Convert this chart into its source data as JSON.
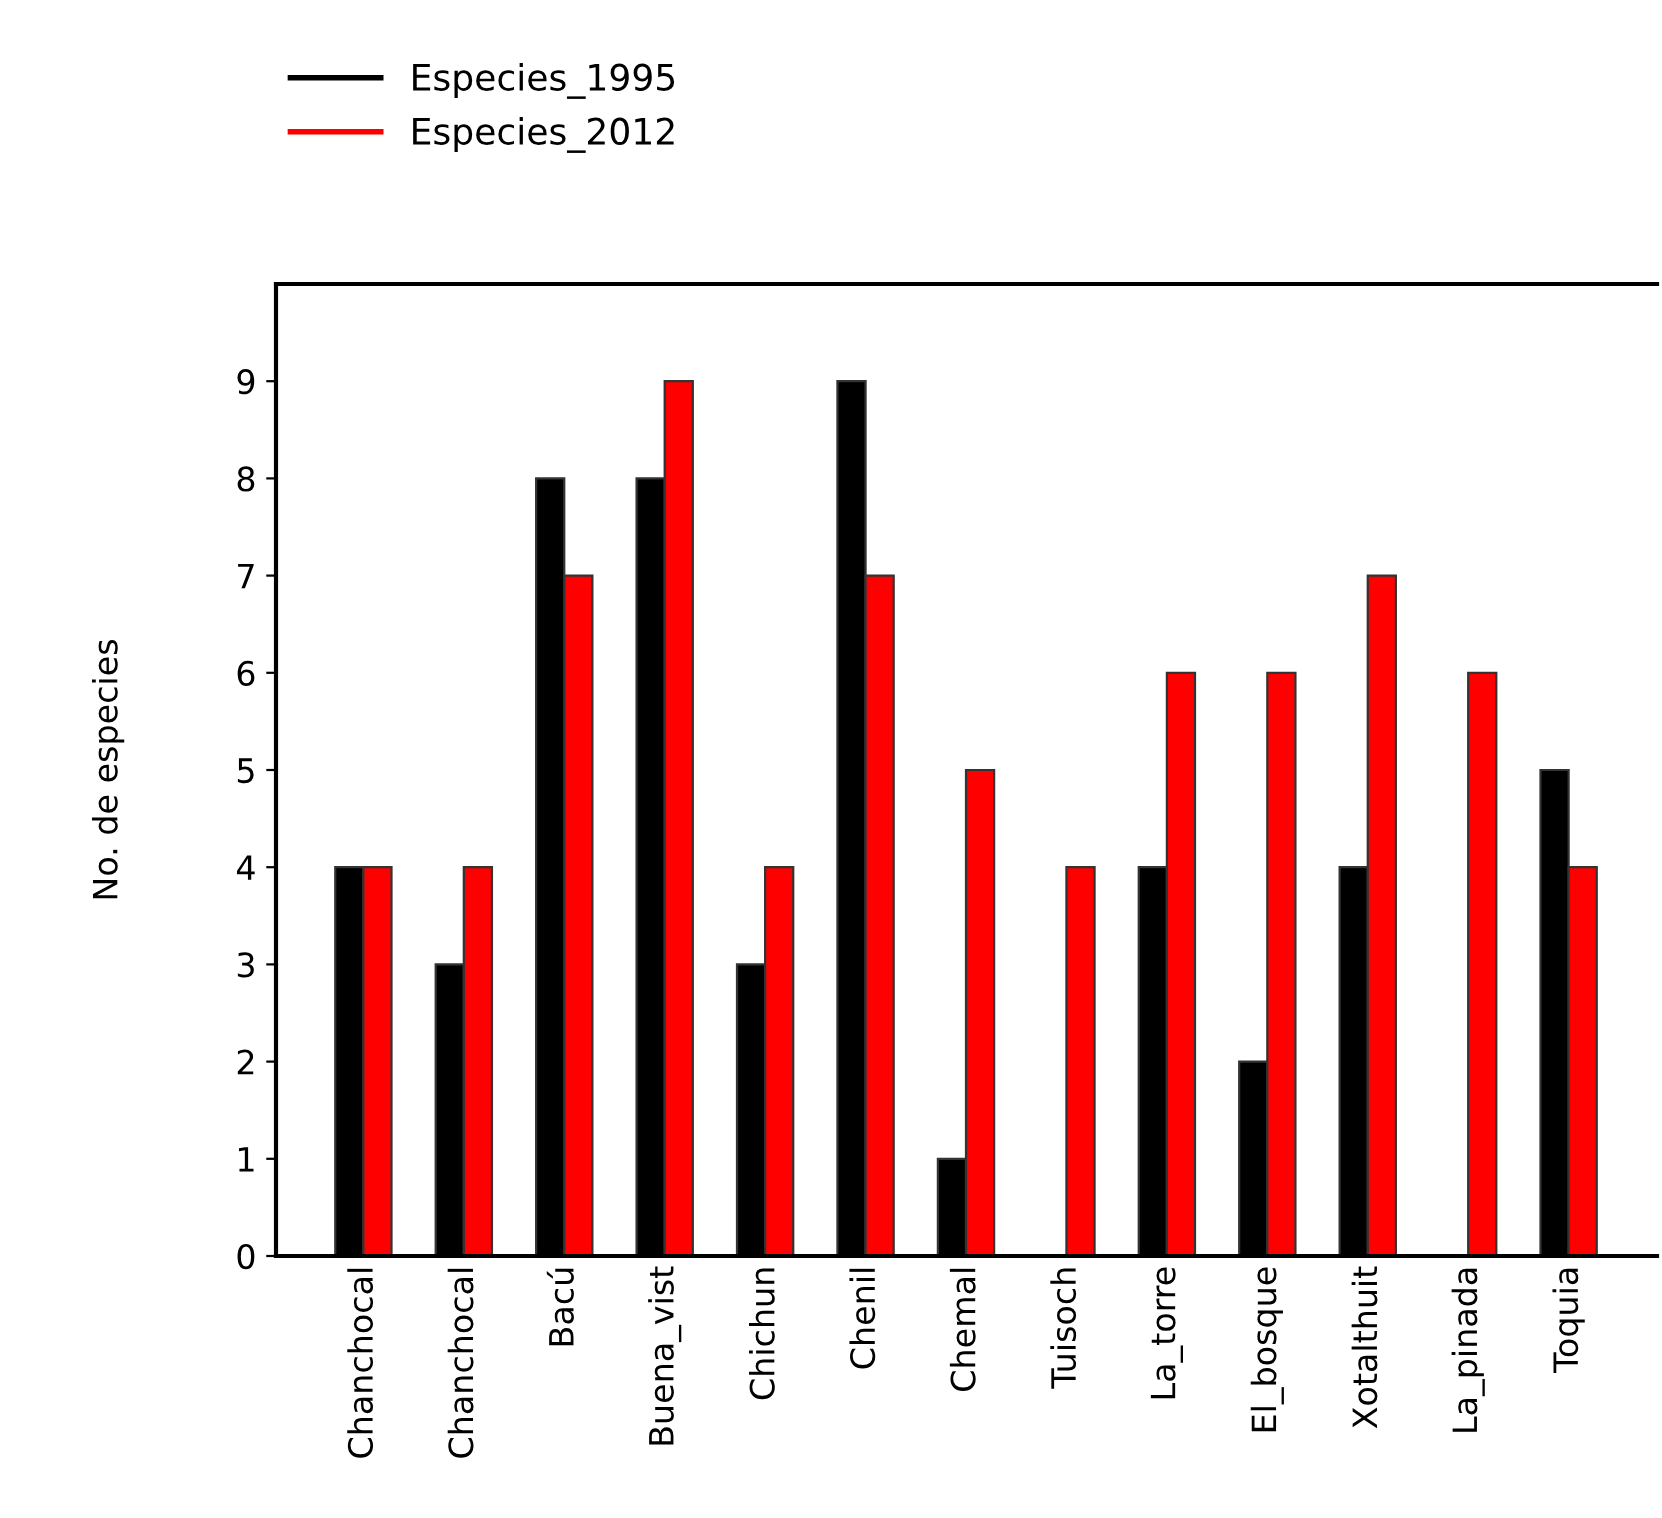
{
  "chart_data": {
    "type": "bar",
    "ylabel": "No. de especies",
    "categories": [
      "Chanchocal",
      "Chanchocal",
      "Bacú",
      "Buena_vist",
      "Chichun",
      "Chenil",
      "Chemal",
      "Tuisoch",
      "La_torre",
      "El_bosque",
      "Xotalthuit",
      "La_pinada",
      "Toquia"
    ],
    "series": [
      {
        "name": "Especies_1995",
        "color": "#000000",
        "values": [
          4,
          3,
          8,
          8,
          3,
          9,
          1,
          0,
          4,
          2,
          4,
          0,
          5
        ]
      },
      {
        "name": "Especies_2012",
        "color": "#ff0000",
        "values": [
          4,
          4,
          7,
          9,
          4,
          7,
          5,
          4,
          6,
          6,
          7,
          6,
          4
        ]
      }
    ],
    "ylim": [
      0,
      10
    ],
    "yticks": [
      0,
      1,
      2,
      3,
      4,
      5,
      6,
      7,
      8,
      9
    ],
    "grid": false,
    "legend": "top left"
  }
}
